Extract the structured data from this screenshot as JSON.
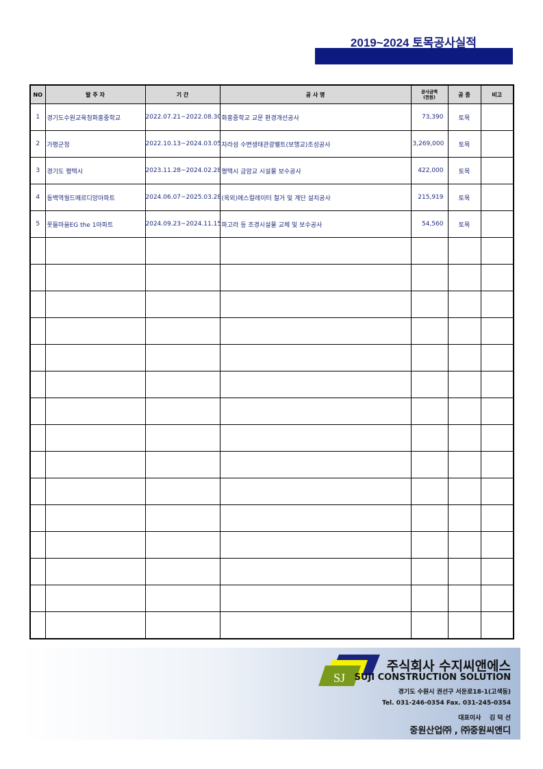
{
  "title": "2019~2024 토목공사실적",
  "headers": {
    "no": "NO",
    "client": "발 주 자",
    "period": "기 간",
    "name": "공 사 명",
    "amount_line1": "공사금액",
    "amount_line2": "(천원)",
    "type": "공 종",
    "note": "비고"
  },
  "rows": [
    {
      "no": "1",
      "client": "경기도수원교육청화홍중학교",
      "period": "2022.07.21~2022.08.30",
      "name": "화홍중학교 교문 환경개선공사",
      "amount": "73,390",
      "type": "토목",
      "note": ""
    },
    {
      "no": "2",
      "client": "가평군청",
      "period": "2022.10.13~2024.03.05",
      "name": "자라섬 수변생태관광벨트(보행교)조성공사",
      "amount": "3,269,000",
      "type": "토목",
      "note": ""
    },
    {
      "no": "3",
      "client": "경기도 평택시",
      "period": "2023.11.28~2024.02.28",
      "name": "평택시 금암교 시설물 보수공사",
      "amount": "422,000",
      "type": "토목",
      "note": ""
    },
    {
      "no": "4",
      "client": "동백역월드메르디앙아파트",
      "period": "2024.06.07~2025.03.28",
      "name": "(옥외)에스컬레이터 철거 및 계단 설치공사",
      "amount": "215,919",
      "type": "토목",
      "note": ""
    },
    {
      "no": "5",
      "client": "못들마을EG the 1아파트",
      "period": "2024.09.23~2024.11.15",
      "name": "파고라 등 조경시설물 교체 및 보수공사",
      "amount": "54,560",
      "type": "토목",
      "note": ""
    }
  ],
  "footer": {
    "logo_text": "SJ",
    "company_kr": "주식회사 수지씨앤에스",
    "company_en": "SUJI CONSTRUCTION SOLUTION",
    "address": "경기도 수원시 권선구 서둔로18-1(고색동)",
    "contact": "Tel. 031-246-0354  Fax. 031-245-0354",
    "ceo": "대표이사    김 덕 선",
    "affiliates": "중원산업㈜ , ㈜중원씨앤디"
  }
}
